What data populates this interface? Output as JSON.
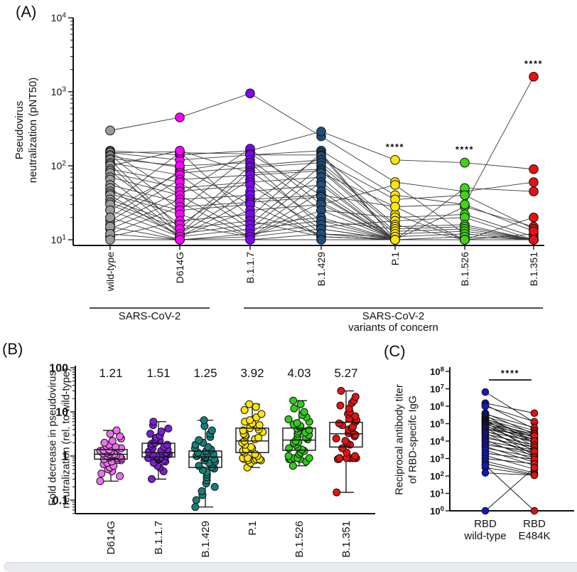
{
  "chart_data": [
    {
      "type": "scatter-line",
      "panel_label": "(A)",
      "ylabel_lines": [
        "Pseudovirus",
        "neutralization (pNT50)"
      ],
      "y_scale": "log",
      "y_tick_exponents": [
        1,
        2,
        3,
        4
      ],
      "ylim_exponents": [
        1,
        4
      ],
      "categories": [
        "wild-type",
        "D614G",
        "B.1.1.7",
        "B.1.429",
        "P.1",
        "B.1.526",
        "B.1.351"
      ],
      "colors": [
        "#9C9C9C",
        "#FF00FF",
        "#8000FF",
        "#1F4E79",
        "#FFE600",
        "#3FD414",
        "#E81111"
      ],
      "group_labels": [
        {
          "lines": [
            "SARS-CoV-2"
          ],
          "span_categories": [
            0,
            1
          ]
        },
        {
          "lines": [
            "SARS-CoV-2",
            "variants of concern"
          ],
          "span_categories": [
            2,
            6
          ]
        }
      ],
      "significance": [
        {
          "category_index": 4,
          "text": "****"
        },
        {
          "category_index": 5,
          "text": "****"
        },
        {
          "category_index": 6,
          "text": "****"
        }
      ],
      "subjects": [
        [
          300,
          450,
          950,
          250,
          60,
          45,
          60
        ],
        [
          160,
          140,
          160,
          290,
          120,
          110,
          90
        ],
        [
          150,
          120,
          140,
          160,
          40,
          30,
          1600
        ],
        [
          155,
          40,
          170,
          30,
          55,
          12,
          10
        ],
        [
          150,
          155,
          20,
          150,
          10,
          50,
          45
        ],
        [
          30,
          150,
          145,
          40,
          28,
          10,
          20
        ],
        [
          140,
          25,
          140,
          140,
          10,
          28,
          15
        ],
        [
          135,
          95,
          30,
          135,
          22,
          10,
          12
        ],
        [
          20,
          85,
          120,
          25,
          20,
          22,
          11
        ],
        [
          125,
          100,
          110,
          15,
          18,
          20,
          10
        ],
        [
          120,
          14,
          100,
          120,
          35,
          40,
          14
        ],
        [
          25,
          80,
          95,
          110,
          16,
          10,
          10
        ],
        [
          110,
          75,
          16,
          100,
          15,
          16,
          10
        ],
        [
          105,
          12,
          85,
          18,
          14,
          15,
          10
        ],
        [
          100,
          160,
          80,
          90,
          13,
          14,
          10
        ],
        [
          18,
          65,
          75,
          85,
          12,
          13,
          10
        ],
        [
          90,
          60,
          14,
          80,
          28,
          30,
          13
        ],
        [
          85,
          16,
          65,
          12,
          11,
          12,
          10
        ],
        [
          80,
          50,
          60,
          70,
          10,
          11,
          10
        ],
        [
          16,
          45,
          55,
          14,
          10,
          10,
          10
        ],
        [
          70,
          40,
          12,
          60,
          10,
          10,
          10
        ],
        [
          65,
          12,
          45,
          55,
          10,
          10,
          10
        ],
        [
          14,
          35,
          40,
          11,
          10,
          10,
          10
        ],
        [
          55,
          32,
          11,
          45,
          10,
          10,
          10
        ],
        [
          50,
          11,
          35,
          40,
          10,
          10,
          10
        ],
        [
          12,
          28,
          32,
          38,
          10,
          10,
          10
        ],
        [
          45,
          25,
          30,
          11,
          10,
          10,
          10
        ],
        [
          42,
          22,
          11,
          32,
          10,
          10,
          10
        ],
        [
          40,
          11,
          25,
          30,
          10,
          10,
          10
        ],
        [
          11,
          18,
          22,
          12,
          10,
          10,
          10
        ],
        [
          35,
          16,
          11,
          25,
          10,
          10,
          10
        ],
        [
          32,
          14,
          18,
          11,
          10,
          10,
          10
        ],
        [
          30,
          12,
          16,
          20,
          10,
          10,
          10
        ],
        [
          25,
          11,
          14,
          18,
          10,
          10,
          10
        ],
        [
          20,
          10,
          12,
          16,
          10,
          10,
          10
        ],
        [
          15,
          10,
          11,
          14,
          10,
          10,
          10
        ],
        [
          12,
          10,
          10,
          12,
          10,
          10,
          10
        ],
        [
          10,
          10,
          10,
          10,
          10,
          10,
          10
        ]
      ]
    },
    {
      "type": "box-scatter",
      "panel_label": "(B)",
      "ylabel_lines": [
        "Fold decrease in pseudovirus",
        "neutralization (rel. to wild-type)"
      ],
      "y_scale": "log",
      "y_tick_labels": [
        "100",
        "10",
        "1",
        "0.1"
      ],
      "y_tick_exponents": [
        2,
        1,
        0,
        -1
      ],
      "ylim": [
        0.05,
        100
      ],
      "categories": [
        "D614G",
        "B.1.1.7",
        "B.1.429",
        "P.1",
        "B.1.526",
        "B.1.351"
      ],
      "colors": [
        "#EE6FEF",
        "#7A1FD2",
        "#168078",
        "#FFE600",
        "#2FCC16",
        "#E81111"
      ],
      "means": [
        "1.21",
        "1.51",
        "1.25",
        "3.92",
        "4.03",
        "5.27"
      ],
      "box_stats": [
        {
          "lo": 0.27,
          "q1": 0.85,
          "median": 1.1,
          "q3": 1.4,
          "hi": 3.8
        },
        {
          "lo": 0.3,
          "q1": 0.95,
          "median": 1.2,
          "q3": 1.95,
          "hi": 6.0
        },
        {
          "lo": 0.07,
          "q1": 0.55,
          "median": 0.95,
          "q3": 1.3,
          "hi": 6.5
        },
        {
          "lo": 0.55,
          "q1": 1.2,
          "median": 2.2,
          "q3": 4.3,
          "hi": 15
        },
        {
          "lo": 0.6,
          "q1": 1.35,
          "median": 2.3,
          "q3": 4.3,
          "hi": 18
        },
        {
          "lo": 0.15,
          "q1": 1.6,
          "median": 3.2,
          "q3": 5.8,
          "hi": 30
        }
      ],
      "points": [
        [
          0.27,
          0.35,
          0.4,
          0.45,
          0.5,
          0.55,
          0.6,
          0.65,
          0.7,
          0.75,
          0.8,
          0.82,
          0.85,
          0.88,
          0.9,
          0.92,
          0.95,
          0.98,
          1.0,
          1.0,
          1.05,
          1.05,
          1.1,
          1.1,
          1.15,
          1.2,
          1.25,
          1.3,
          1.35,
          1.4,
          1.5,
          1.6,
          1.7,
          1.8,
          2.0,
          2.2,
          2.5,
          2.8,
          3.2,
          3.8
        ],
        [
          0.3,
          0.45,
          0.55,
          0.6,
          0.7,
          0.75,
          0.8,
          0.82,
          0.85,
          0.88,
          0.9,
          0.92,
          0.95,
          0.95,
          1.0,
          1.0,
          1.0,
          1.05,
          1.1,
          1.1,
          1.15,
          1.2,
          1.25,
          1.3,
          1.4,
          1.5,
          1.6,
          1.7,
          1.8,
          1.9,
          2.0,
          2.2,
          2.4,
          2.6,
          2.9,
          3.2,
          3.6,
          4.2,
          5.0,
          6.0
        ],
        [
          0.07,
          0.1,
          0.13,
          0.16,
          0.2,
          0.24,
          0.28,
          0.33,
          0.38,
          0.43,
          0.48,
          0.52,
          0.56,
          0.6,
          0.65,
          0.7,
          0.75,
          0.8,
          0.85,
          0.9,
          0.92,
          0.95,
          1.0,
          1.0,
          1.05,
          1.1,
          1.15,
          1.2,
          1.3,
          1.4,
          1.5,
          1.6,
          1.8,
          2.0,
          2.3,
          2.7,
          3.2,
          3.8,
          4.8,
          6.5
        ],
        [
          0.55,
          0.7,
          0.8,
          0.8,
          0.8,
          0.8,
          0.85,
          0.85,
          0.85,
          0.9,
          0.9,
          1.0,
          1.1,
          1.2,
          1.3,
          1.4,
          1.5,
          1.6,
          1.8,
          2.0,
          2.2,
          2.4,
          2.6,
          2.8,
          3.0,
          3.2,
          3.5,
          3.8,
          4.0,
          4.3,
          4.6,
          5.0,
          5.5,
          6.0,
          6.5,
          7.5,
          9.0,
          11,
          13,
          15
        ],
        [
          0.6,
          0.75,
          0.85,
          0.85,
          0.85,
          0.9,
          0.9,
          0.9,
          1.0,
          1.1,
          1.2,
          1.3,
          1.4,
          1.5,
          1.6,
          1.8,
          2.0,
          2.1,
          2.2,
          2.4,
          2.6,
          2.8,
          3.0,
          3.2,
          3.4,
          3.6,
          3.9,
          4.2,
          4.5,
          4.8,
          5.2,
          5.6,
          6.0,
          6.8,
          7.6,
          8.5,
          10,
          12,
          15,
          18
        ],
        [
          0.15,
          0.85,
          0.85,
          0.9,
          0.9,
          0.9,
          0.9,
          0.9,
          0.9,
          0.9,
          0.9,
          0.9,
          1.0,
          1.2,
          1.5,
          1.8,
          2.0,
          2.2,
          2.5,
          2.8,
          3.0,
          3.3,
          3.6,
          4.0,
          4.3,
          4.6,
          5.0,
          5.5,
          6.0,
          6.5,
          7.0,
          8.0,
          9.0,
          10,
          12,
          14,
          16,
          18,
          22,
          30
        ]
      ]
    },
    {
      "type": "paired-scatter",
      "panel_label": "(C)",
      "ylabel_lines": [
        "Reciprocal antibody titer",
        "of RBD-specifc IgG"
      ],
      "y_scale": "log",
      "y_tick_exponents": [
        0,
        1,
        2,
        3,
        4,
        5,
        6,
        7,
        8
      ],
      "categories_lines": [
        [
          "RBD",
          "wild-type"
        ],
        [
          "RBD",
          "E484K"
        ]
      ],
      "colors": [
        "#1414CC",
        "#E01111"
      ],
      "significance": {
        "text": "****"
      },
      "pairs": [
        [
          6500000,
          120000
        ],
        [
          1500000,
          400000
        ],
        [
          1200000,
          50000
        ],
        [
          1000000,
          130000
        ],
        [
          400000,
          25000
        ],
        [
          350000,
          60000
        ],
        [
          300000,
          8000
        ],
        [
          250000,
          40000
        ],
        [
          200000,
          15000
        ],
        [
          180000,
          30000
        ],
        [
          160000,
          5000
        ],
        [
          150000,
          20000
        ],
        [
          130000,
          12000
        ],
        [
          120000,
          2500
        ],
        [
          110000,
          25000
        ],
        [
          100000,
          9000
        ],
        [
          90000,
          18000
        ],
        [
          80000,
          4000
        ],
        [
          70000,
          12000
        ],
        [
          60000,
          1500
        ],
        [
          55000,
          8000
        ],
        [
          50000,
          20000
        ],
        [
          40000,
          3000
        ],
        [
          35000,
          10000
        ],
        [
          30000,
          1200
        ],
        [
          25000,
          6000
        ],
        [
          20000,
          2000
        ],
        [
          15000,
          4500
        ],
        [
          12000,
          800
        ],
        [
          10000,
          3000
        ],
        [
          8000,
          1500
        ],
        [
          6000,
          2500
        ],
        [
          5000,
          600
        ],
        [
          4000,
          1200
        ],
        [
          3000,
          400
        ],
        [
          2000,
          900
        ],
        [
          1500,
          250
        ],
        [
          1000,
          500
        ],
        [
          700,
          150
        ],
        [
          500,
          120
        ],
        [
          300,
          110
        ],
        [
          150,
          110
        ],
        [
          1,
          300
        ],
        [
          400,
          1
        ]
      ]
    }
  ]
}
